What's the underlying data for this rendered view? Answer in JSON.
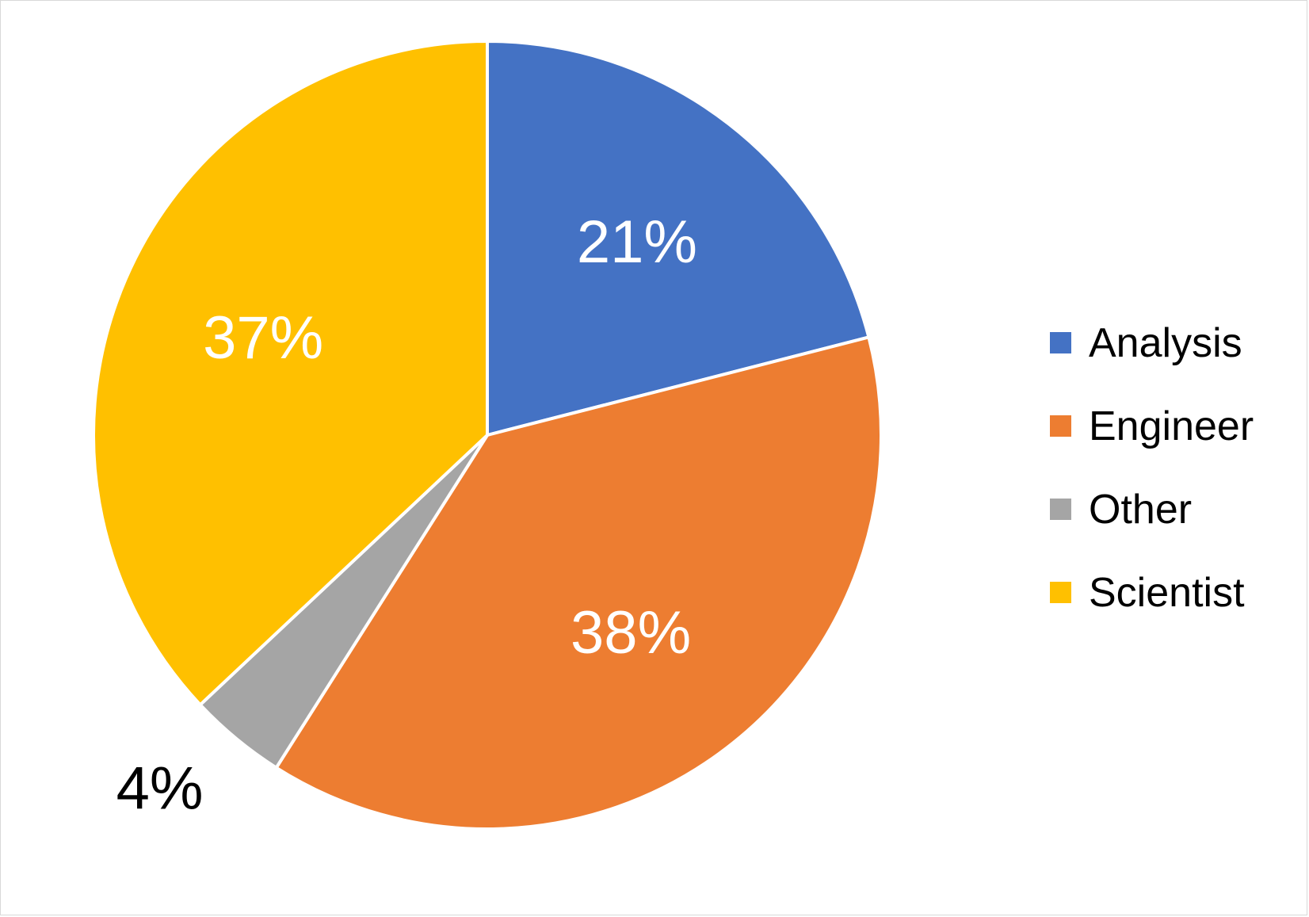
{
  "chart_data": {
    "type": "pie",
    "categories": [
      "Analysis",
      "Engineer",
      "Other",
      "Scientist"
    ],
    "values": [
      21,
      38,
      4,
      37
    ],
    "data_labels": [
      "21%",
      "38%",
      "4%",
      "37%"
    ],
    "colors": [
      "#4472C4",
      "#ED7D31",
      "#A5A5A5",
      "#FFC000"
    ],
    "label_colors": [
      "#ffffff",
      "#ffffff",
      "#000000",
      "#ffffff"
    ],
    "label_placement": [
      "inside",
      "inside",
      "outside",
      "inside"
    ],
    "start_angle_deg": 0,
    "direction": "clockwise",
    "title": "",
    "legend": {
      "position": "right",
      "entries": [
        "Analysis",
        "Engineer",
        "Other",
        "Scientist"
      ]
    }
  }
}
